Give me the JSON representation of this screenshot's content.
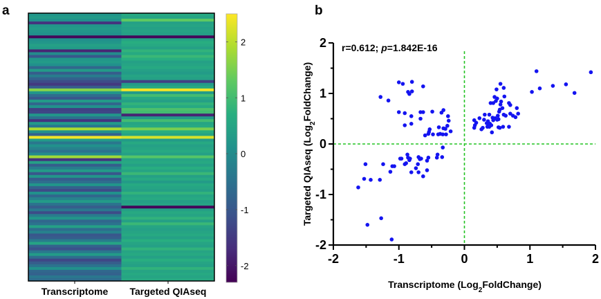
{
  "chart_data": [
    {
      "type": "heatmap",
      "panel_label": "a",
      "title": "",
      "columns": [
        "Transcriptome",
        "Targeted QIAseq"
      ],
      "colormap": "viridis",
      "colorbar": {
        "range": [
          -2.3,
          2.5
        ],
        "ticks": [
          2,
          1,
          0,
          -1,
          -2
        ],
        "tick_labels": [
          "2",
          "1",
          "0",
          "-1",
          "-2"
        ]
      },
      "values": {
        "Transcriptome": [
          0.2,
          0.3,
          0.1,
          -1.6,
          0.2,
          0.3,
          0.2,
          0.1,
          -2.2,
          0.1,
          0.2,
          0.4,
          0.3,
          -1.8,
          0.0,
          -1.0,
          0.2,
          0.3,
          0.1,
          -0.7,
          0.3,
          -0.9,
          -0.3,
          -0.8,
          -1.2,
          -1.5,
          -0.9,
          1.6,
          0.2,
          -0.6,
          -1.0,
          0.3,
          -0.7,
          0.1,
          -1.4,
          -1.3,
          0.2,
          -0.5,
          -1.6,
          0.3,
          -0.4,
          1.9,
          0.1,
          -0.8,
          2.4,
          0.3,
          -0.4,
          0.1,
          -0.2,
          -0.5,
          0.0,
          1.8,
          -1.6,
          0.4,
          -0.9,
          -0.3,
          0.3,
          -1.0,
          0.2,
          -0.9,
          -0.6,
          0.2,
          -0.8,
          -1.2,
          0.1,
          -0.7,
          -0.2,
          0.3,
          -0.5,
          -0.9,
          -0.4,
          -1.2,
          -0.3,
          0.2,
          -0.7,
          -0.5,
          0.4,
          -0.6,
          -0.2,
          -1.0,
          -0.9,
          -0.3,
          0.5,
          -0.8,
          -1.1,
          -0.4,
          0.3,
          -0.6,
          -1.3,
          -0.9,
          -0.5,
          0.1,
          -0.7,
          -0.8,
          -0.4,
          -0.6
        ],
        "Targeted QIAseq": [
          0.6,
          0.5,
          1.3,
          0.4,
          0.5,
          0.4,
          0.5,
          0.4,
          -2.2,
          0.5,
          0.7,
          0.6,
          0.4,
          0.8,
          0.6,
          0.9,
          0.7,
          0.4,
          0.5,
          0.6,
          0.4,
          0.3,
          0.5,
          0.4,
          -1.4,
          0.3,
          0.6,
          2.4,
          0.3,
          1.0,
          0.6,
          0.4,
          0.8,
          0.6,
          1.1,
          1.0,
          -1.8,
          0.3,
          1.0,
          0.5,
          0.6,
          1.5,
          0.7,
          0.5,
          2.2,
          0.3,
          0.6,
          0.4,
          0.5,
          0.6,
          0.4,
          1.2,
          0.5,
          0.6,
          0.4,
          0.7,
          0.5,
          0.9,
          0.4,
          0.6,
          0.3,
          0.6,
          0.5,
          0.4,
          0.8,
          0.5,
          0.6,
          0.4,
          0.5,
          -2.2,
          0.4,
          0.6,
          0.5,
          0.8,
          0.4,
          0.9,
          0.5,
          0.4,
          0.5,
          0.6,
          0.4,
          0.7,
          0.5,
          0.4,
          0.8,
          0.5,
          0.6,
          0.4,
          0.7,
          0.5,
          0.4,
          0.8,
          0.5,
          0.6,
          0.5,
          0.6
        ]
      },
      "xlabel": "",
      "ylabel": ""
    },
    {
      "type": "scatter",
      "panel_label": "b",
      "title": "",
      "annotation": {
        "r_text": "r=0.612; ",
        "p_symbol": "p",
        "p_text": "=1.842E-16"
      },
      "xlabel": {
        "prefix": "Transcriptome (Log",
        "sub": "2",
        "suffix": "FoldChange)"
      },
      "ylabel": {
        "prefix": "Targeted QIAseq (Log",
        "sub": "2",
        "suffix": "FoldChange)"
      },
      "xlim": [
        -2,
        2
      ],
      "ylim": [
        -2,
        2
      ],
      "xticks": [
        -2,
        -1,
        0,
        1,
        2
      ],
      "yticks": [
        -2,
        -1,
        0,
        1,
        2
      ],
      "reference_lines": {
        "x": 0,
        "y": 0,
        "style": "dashed",
        "color": "#22c322"
      },
      "point_color": "#1414f0",
      "points": [
        [
          -1.28,
          0.93
        ],
        [
          -1.16,
          0.86
        ],
        [
          -1.0,
          1.22
        ],
        [
          -0.94,
          1.19
        ],
        [
          -0.8,
          1.23
        ],
        [
          -0.63,
          1.14
        ],
        [
          -0.86,
          1.03
        ],
        [
          -0.8,
          1.04
        ],
        [
          -0.84,
          0.99
        ],
        [
          -1.0,
          0.63
        ],
        [
          -0.91,
          0.61
        ],
        [
          -0.81,
          0.55
        ],
        [
          -0.91,
          0.37
        ],
        [
          -0.81,
          0.4
        ],
        [
          -0.67,
          0.63
        ],
        [
          -0.63,
          0.63
        ],
        [
          -0.67,
          0.5
        ],
        [
          -0.49,
          0.64
        ],
        [
          -0.35,
          0.62
        ],
        [
          -0.32,
          0.67
        ],
        [
          -0.25,
          0.55
        ],
        [
          -0.24,
          0.46
        ],
        [
          -0.26,
          0.36
        ],
        [
          -0.39,
          0.33
        ],
        [
          -0.32,
          0.31
        ],
        [
          -0.29,
          0.3
        ],
        [
          -0.21,
          0.25
        ],
        [
          -0.53,
          0.29
        ],
        [
          -0.54,
          0.24
        ],
        [
          -0.55,
          0.2
        ],
        [
          -0.6,
          0.17
        ],
        [
          -0.48,
          0.19
        ],
        [
          -0.4,
          0.19
        ],
        [
          -0.37,
          0.2
        ],
        [
          -0.33,
          0.19
        ],
        [
          -0.28,
          0.19
        ],
        [
          -0.33,
          -0.07
        ],
        [
          -0.41,
          -0.21
        ],
        [
          -0.42,
          -0.27
        ],
        [
          -0.34,
          -0.26
        ],
        [
          -0.55,
          -0.27
        ],
        [
          -0.57,
          -0.33
        ],
        [
          -0.57,
          -0.52
        ],
        [
          -0.63,
          -0.64
        ],
        [
          -0.7,
          -0.56
        ],
        [
          -0.74,
          -0.48
        ],
        [
          -0.71,
          -0.4
        ],
        [
          -0.7,
          -0.26
        ],
        [
          -0.68,
          -0.3
        ],
        [
          -0.66,
          -0.29
        ],
        [
          -0.81,
          -0.56
        ],
        [
          -0.87,
          -0.21
        ],
        [
          -0.86,
          -0.27
        ],
        [
          -0.83,
          -0.29
        ],
        [
          -0.84,
          -0.32
        ],
        [
          -0.89,
          -0.38
        ],
        [
          -0.91,
          -0.4
        ],
        [
          -0.98,
          -0.29
        ],
        [
          -0.96,
          -0.29
        ],
        [
          -1.1,
          -0.44
        ],
        [
          -1.07,
          -0.44
        ],
        [
          -1.13,
          -0.55
        ],
        [
          -1.24,
          -0.4
        ],
        [
          -1.29,
          -0.71
        ],
        [
          -1.51,
          -0.4
        ],
        [
          -1.53,
          -0.69
        ],
        [
          -1.43,
          -0.71
        ],
        [
          -1.62,
          -0.86
        ],
        [
          -1.48,
          -1.6
        ],
        [
          -1.27,
          -1.47
        ],
        [
          -1.11,
          -1.89
        ],
        [
          1.1,
          1.44
        ],
        [
          1.93,
          1.42
        ],
        [
          1.15,
          1.1
        ],
        [
          1.03,
          1.03
        ],
        [
          1.35,
          1.15
        ],
        [
          1.55,
          1.18
        ],
        [
          1.68,
          1.01
        ],
        [
          0.55,
          1.19
        ],
        [
          0.49,
          1.08
        ],
        [
          0.6,
          1.11
        ],
        [
          0.46,
          0.93
        ],
        [
          0.5,
          0.9
        ],
        [
          0.61,
          0.94
        ],
        [
          0.4,
          0.81
        ],
        [
          0.44,
          0.81
        ],
        [
          0.48,
          0.85
        ],
        [
          0.56,
          0.84
        ],
        [
          0.55,
          0.78
        ],
        [
          0.68,
          0.81
        ],
        [
          0.7,
          0.77
        ],
        [
          0.8,
          0.71
        ],
        [
          0.82,
          0.6
        ],
        [
          0.78,
          0.53
        ],
        [
          0.74,
          0.56
        ],
        [
          0.7,
          0.6
        ],
        [
          0.58,
          0.71
        ],
        [
          0.54,
          0.68
        ],
        [
          0.53,
          0.64
        ],
        [
          0.51,
          0.56
        ],
        [
          0.6,
          0.58
        ],
        [
          0.63,
          0.56
        ],
        [
          0.38,
          0.58
        ],
        [
          0.31,
          0.58
        ],
        [
          0.23,
          0.51
        ],
        [
          0.15,
          0.47
        ],
        [
          0.18,
          0.42
        ],
        [
          0.16,
          0.37
        ],
        [
          0.15,
          0.32
        ],
        [
          0.28,
          0.32
        ],
        [
          0.26,
          0.29
        ],
        [
          0.3,
          0.48
        ],
        [
          0.36,
          0.45
        ],
        [
          0.34,
          0.41
        ],
        [
          0.37,
          0.4
        ],
        [
          0.39,
          0.4
        ],
        [
          0.35,
          0.34
        ],
        [
          0.38,
          0.34
        ],
        [
          0.41,
          0.37
        ],
        [
          0.43,
          0.52
        ],
        [
          0.47,
          0.51
        ],
        [
          0.5,
          0.48
        ],
        [
          0.52,
          0.49
        ],
        [
          0.44,
          0.47
        ],
        [
          0.52,
          0.33
        ],
        [
          0.54,
          0.32
        ],
        [
          0.59,
          0.34
        ],
        [
          0.68,
          0.34
        ],
        [
          0.42,
          0.23
        ]
      ]
    }
  ]
}
